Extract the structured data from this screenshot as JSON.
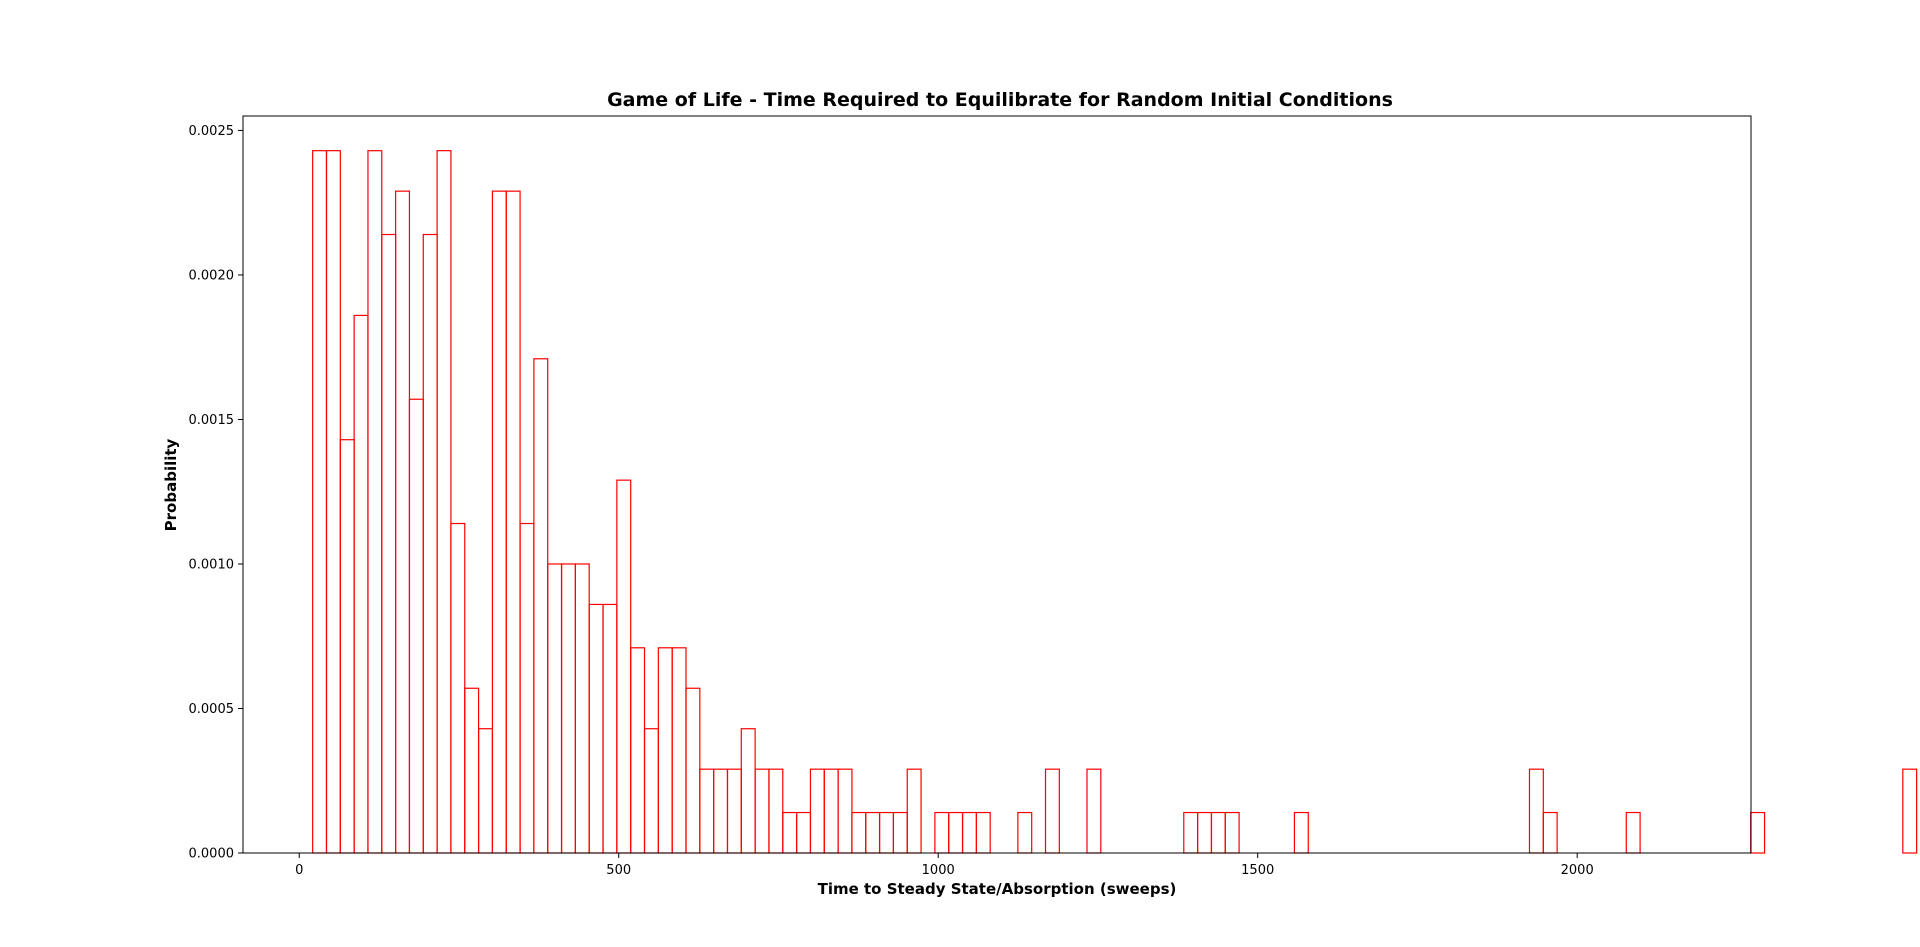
{
  "chart_data": {
    "type": "bar",
    "title": "Game of Life - Time Required to Equilibrate for Random Initial Conditions",
    "xlabel": "Time to Steady State/Absorption (sweeps)",
    "ylabel": "Probability",
    "xlim": [
      -88,
      2272
    ],
    "ylim": [
      0,
      0.00255
    ],
    "xticks": [
      0,
      500,
      1000,
      1500,
      2000
    ],
    "xtick_labels": [
      "0",
      "500",
      "1000",
      "1500",
      "2000"
    ],
    "yticks": [
      0,
      0.0005,
      0.001,
      0.0015,
      0.002,
      0.0025
    ],
    "ytick_labels": [
      "0.0000",
      "0.0005",
      "0.0010",
      "0.0015",
      "0.0020",
      "0.0025"
    ],
    "bin_start": 21,
    "bin_width": 21.64,
    "values": [
      0.00243,
      0.00243,
      0.00143,
      0.00186,
      0.00243,
      0.00214,
      0.00229,
      0.00157,
      0.00214,
      0.00243,
      0.00114,
      0.00057,
      0.00043,
      0.00229,
      0.00229,
      0.00114,
      0.00171,
      0.001,
      0.001,
      0.001,
      0.00086,
      0.00086,
      0.00129,
      0.00071,
      0.00043,
      0.00071,
      0.00071,
      0.00057,
      0.00029,
      0.00029,
      0.00029,
      0.00043,
      0.00029,
      0.00029,
      0.00014,
      0.00014,
      0.00029,
      0.00029,
      0.00029,
      0.00014,
      0.00014,
      0.00014,
      0.00014,
      0.00029,
      0,
      0.00014,
      0.00014,
      0.00014,
      0.00014,
      0,
      0,
      0.00014,
      0,
      0.00029,
      0,
      0,
      0.00029,
      0,
      0,
      0,
      0,
      0,
      0,
      0.00014,
      0.00014,
      0.00014,
      0.00014,
      0,
      0,
      0,
      0,
      0.00014,
      0,
      0,
      0,
      0,
      0,
      0,
      0,
      0,
      0,
      0,
      0,
      0,
      0,
      0,
      0,
      0,
      0.00029,
      0.00014,
      0,
      0,
      0,
      0,
      0,
      0.00014,
      0,
      0,
      0,
      0,
      0,
      0,
      0,
      0,
      0.00014,
      0,
      0,
      0,
      0,
      0,
      0,
      0,
      0,
      0,
      0,
      0.00029
    ],
    "bar_color": "#ff0000",
    "grid": false,
    "legend": "none"
  }
}
